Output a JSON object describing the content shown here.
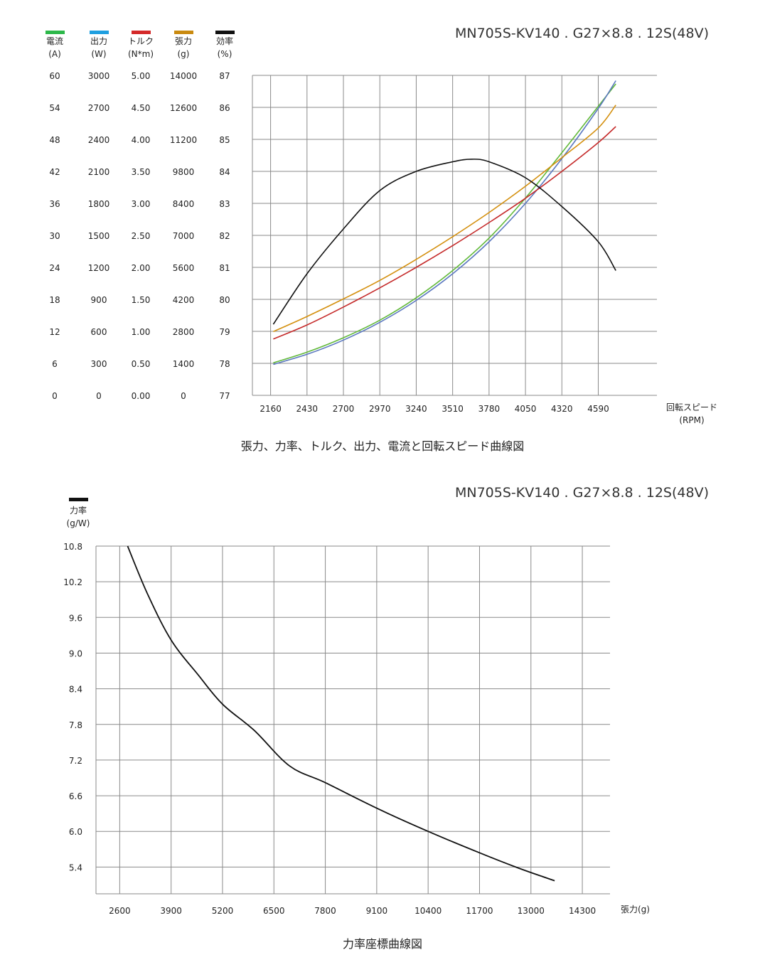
{
  "colors": {
    "current": "#62b93a",
    "power": "#5b78bf",
    "torque": "#c52a2a",
    "thrust": "#d4900f",
    "efficiency": "#111111",
    "grid": "#8a8a8a",
    "legend_current": "#2db84a",
    "legend_power": "#1f9fe0",
    "legend_torque": "#d42a2a",
    "legend_thrust": "#c98a10",
    "legend_efficiency": "#111111"
  },
  "chart_data": [
    {
      "type": "line",
      "model": "MN705S-KV140 . G27×8.8 . 12S(48V)",
      "caption": "張力、力率、トルク、出力、電流と回転スピード曲線図",
      "xlabel": "回転スピード",
      "xunit": "(RPM)",
      "xlim": [
        2025,
        5025
      ],
      "xticks": [
        "2160",
        "2430",
        "2700",
        "2970",
        "3240",
        "3510",
        "3780",
        "4050",
        "4320",
        "4590"
      ],
      "grid": true,
      "legend_position": "top-left",
      "axes": [
        {
          "key": "current",
          "label": "電流",
          "unit": "(A)",
          "ticks": [
            "0",
            "6",
            "12",
            "18",
            "24",
            "30",
            "36",
            "42",
            "48",
            "54",
            "60"
          ],
          "ylim": [
            0,
            60
          ]
        },
        {
          "key": "power",
          "label": "出力",
          "unit": "(W)",
          "ticks": [
            "0",
            "300",
            "600",
            "900",
            "1200",
            "1500",
            "1800",
            "2100",
            "2400",
            "2700",
            "3000"
          ],
          "ylim": [
            0,
            3000
          ]
        },
        {
          "key": "torque",
          "label": "トルク",
          "unit": "(N*m)",
          "ticks": [
            "0.00",
            "0.50",
            "1.00",
            "1.50",
            "2.00",
            "2.50",
            "3.00",
            "3.50",
            "4.00",
            "4.50",
            "5.00"
          ],
          "ylim": [
            0,
            5
          ]
        },
        {
          "key": "thrust",
          "label": "張力",
          "unit": "(g)",
          "ticks": [
            "0",
            "1400",
            "2800",
            "4200",
            "5600",
            "7000",
            "8400",
            "9800",
            "11200",
            "12600",
            "14000"
          ],
          "ylim": [
            0,
            14000
          ]
        },
        {
          "key": "efficiency",
          "label": "効率",
          "unit": "(%)",
          "ticks": [
            "77",
            "78",
            "79",
            "80",
            "81",
            "82",
            "83",
            "84",
            "85",
            "86",
            "87"
          ],
          "ylim": [
            77,
            87
          ]
        }
      ],
      "series": [
        {
          "key": "current",
          "x": [
            2180,
            2430,
            2700,
            2970,
            3240,
            3510,
            3780,
            4050,
            4320,
            4590,
            4720
          ],
          "y": [
            6.1,
            8.1,
            10.8,
            14.1,
            18.3,
            23.4,
            29.5,
            37.0,
            45.5,
            54.2,
            58.4
          ]
        },
        {
          "key": "power",
          "x": [
            2180,
            2430,
            2700,
            2970,
            3240,
            3510,
            3780,
            4050,
            4320,
            4590,
            4720
          ],
          "y": [
            290,
            385,
            518,
            685,
            890,
            1140,
            1440,
            1800,
            2220,
            2690,
            2950
          ]
        },
        {
          "key": "torque",
          "x": [
            2180,
            2430,
            2700,
            2970,
            3240,
            3510,
            3780,
            4050,
            4320,
            4590,
            4720
          ],
          "y": [
            0.88,
            1.1,
            1.38,
            1.68,
            2.0,
            2.34,
            2.7,
            3.08,
            3.5,
            3.95,
            4.2
          ]
        },
        {
          "key": "thrust",
          "x": [
            2180,
            2430,
            2700,
            2970,
            3240,
            3510,
            3780,
            4050,
            4320,
            4590,
            4720
          ],
          "y": [
            2790,
            3450,
            4220,
            5030,
            5950,
            6940,
            8000,
            9150,
            10400,
            11700,
            12700
          ]
        },
        {
          "key": "efficiency",
          "x": [
            2180,
            2430,
            2700,
            2970,
            3240,
            3510,
            3650,
            3780,
            4050,
            4320,
            4590,
            4720
          ],
          "y": [
            79.22,
            80.8,
            82.2,
            83.4,
            84.0,
            84.3,
            84.38,
            84.3,
            83.8,
            82.9,
            81.8,
            80.9
          ]
        }
      ]
    },
    {
      "type": "line",
      "model": "MN705S-KV140 . G27×8.8 . 12S(48V)",
      "caption": "力率座標曲線図",
      "legend": {
        "label": "力率",
        "unit": "(g/W)"
      },
      "xlabel": "張力(g)",
      "xlim": [
        2000,
        15000
      ],
      "ylim": [
        4.95,
        10.8
      ],
      "xticks": [
        "2600",
        "3900",
        "5200",
        "6500",
        "7800",
        "9100",
        "10400",
        "11700",
        "13000",
        "14300"
      ],
      "yticks": [
        "5.4",
        "6.0",
        "6.6",
        "7.2",
        "7.8",
        "8.4",
        "9.0",
        "9.6",
        "10.2",
        "10.8"
      ],
      "grid": true,
      "series": [
        {
          "key": "efficiency",
          "x": [
            2800,
            3300,
            3900,
            4600,
            5200,
            6000,
            6900,
            7800,
            9100,
            10400,
            11700,
            12700,
            13600
          ],
          "y": [
            10.8,
            10.0,
            9.22,
            8.62,
            8.14,
            7.7,
            7.1,
            6.82,
            6.39,
            6.0,
            5.64,
            5.38,
            5.17
          ]
        }
      ]
    }
  ]
}
